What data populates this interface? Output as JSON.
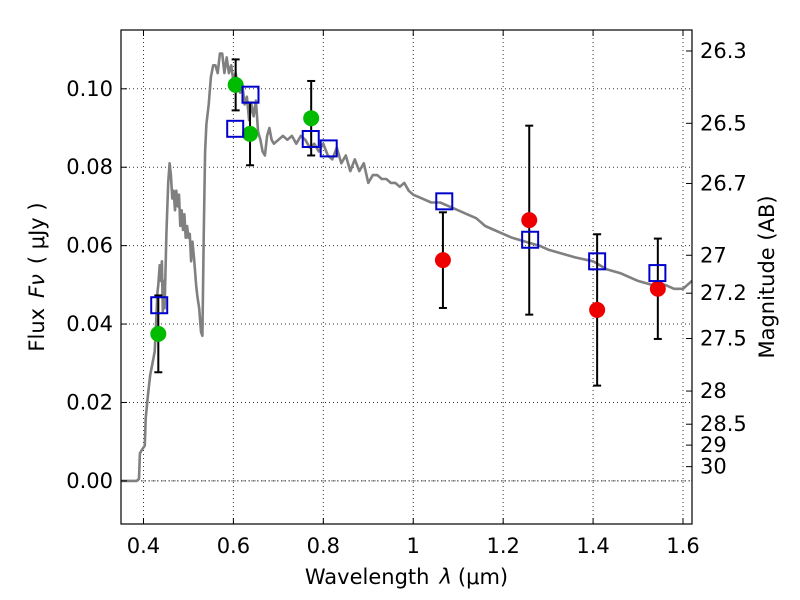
{
  "chart_data": {
    "type": "scatter",
    "title": "",
    "xlabel": "Wavelength",
    "xlabel_symbol": "λ",
    "xlabel_unit": "(μm)",
    "ylabel": "Flux",
    "ylabel_symbol": "Fν",
    "ylabel_unit": "( μJy )",
    "ylabel_right": "Magnitude (AB)",
    "xlim": [
      0.35,
      1.62
    ],
    "ylim": [
      -0.011,
      0.115
    ],
    "x_ticks": [
      0.4,
      0.6,
      0.8,
      1.0,
      1.2,
      1.4,
      1.6
    ],
    "x_tick_labels": [
      "0.4",
      "0.6",
      "0.8",
      "1",
      "1.2",
      "1.4",
      "1.6"
    ],
    "y_ticks": [
      0.0,
      0.02,
      0.04,
      0.06,
      0.08,
      0.1
    ],
    "y_tick_labels": [
      "0.00",
      "0.02",
      "0.04",
      "0.06",
      "0.08",
      "0.10"
    ],
    "mag_ticks": [
      26.3,
      26.5,
      26.7,
      27,
      27.2,
      27.5,
      28,
      28.5,
      29,
      30
    ],
    "mag_tick_labels": [
      "26.3",
      "26.5",
      "26.7",
      "27",
      "27.2",
      "27.5",
      "28",
      "28.5",
      "29",
      "30"
    ],
    "grid": true,
    "colors": {
      "model": "#808080",
      "green_points": "#00bb00",
      "red_points": "#ee0000",
      "model_boxes": "#0000cc",
      "errorbars": "#000000"
    },
    "sed_model": {
      "name": "",
      "points": [
        [
          0.35,
          0.0
        ],
        [
          0.385,
          0.0
        ],
        [
          0.39,
          0.0005
        ],
        [
          0.392,
          0.007
        ],
        [
          0.397,
          0.008
        ],
        [
          0.403,
          0.009
        ],
        [
          0.405,
          0.016
        ],
        [
          0.41,
          0.022
        ],
        [
          0.415,
          0.027
        ],
        [
          0.42,
          0.03
        ],
        [
          0.425,
          0.033
        ],
        [
          0.428,
          0.04
        ],
        [
          0.431,
          0.048
        ],
        [
          0.433,
          0.05
        ],
        [
          0.436,
          0.055
        ],
        [
          0.438,
          0.051
        ],
        [
          0.441,
          0.056
        ],
        [
          0.443,
          0.043
        ],
        [
          0.445,
          0.051
        ],
        [
          0.447,
          0.044
        ],
        [
          0.451,
          0.063
        ],
        [
          0.455,
          0.076
        ],
        [
          0.458,
          0.081
        ],
        [
          0.461,
          0.078
        ],
        [
          0.464,
          0.072
        ],
        [
          0.467,
          0.074
        ],
        [
          0.47,
          0.069
        ],
        [
          0.473,
          0.074
        ],
        [
          0.476,
          0.07
        ],
        [
          0.479,
          0.073
        ],
        [
          0.482,
          0.065
        ],
        [
          0.485,
          0.069
        ],
        [
          0.488,
          0.064
        ],
        [
          0.491,
          0.068
        ],
        [
          0.494,
          0.062
        ],
        [
          0.497,
          0.065
        ],
        [
          0.5,
          0.062
        ],
        [
          0.503,
          0.063
        ],
        [
          0.506,
          0.056
        ],
        [
          0.509,
          0.061
        ],
        [
          0.513,
          0.056
        ],
        [
          0.517,
          0.05
        ],
        [
          0.52,
          0.047
        ],
        [
          0.524,
          0.044
        ],
        [
          0.528,
          0.038
        ],
        [
          0.531,
          0.037
        ],
        [
          0.534,
          0.062
        ],
        [
          0.537,
          0.084
        ],
        [
          0.54,
          0.091
        ],
        [
          0.545,
          0.096
        ],
        [
          0.55,
          0.103
        ],
        [
          0.555,
          0.106
        ],
        [
          0.56,
          0.106
        ],
        [
          0.565,
          0.104
        ],
        [
          0.57,
          0.109
        ],
        [
          0.575,
          0.109
        ],
        [
          0.58,
          0.104
        ],
        [
          0.585,
          0.108
        ],
        [
          0.59,
          0.104
        ],
        [
          0.595,
          0.106
        ],
        [
          0.6,
          0.102
        ],
        [
          0.605,
          0.104
        ],
        [
          0.61,
          0.101
        ],
        [
          0.615,
          0.099
        ],
        [
          0.62,
          0.101
        ],
        [
          0.625,
          0.096
        ],
        [
          0.63,
          0.098
        ],
        [
          0.635,
          0.092
        ],
        [
          0.64,
          0.096
        ],
        [
          0.645,
          0.093
        ],
        [
          0.65,
          0.097
        ],
        [
          0.655,
          0.089
        ],
        [
          0.66,
          0.087
        ],
        [
          0.665,
          0.084
        ],
        [
          0.67,
          0.083
        ],
        [
          0.675,
          0.088
        ],
        [
          0.68,
          0.09
        ],
        [
          0.685,
          0.087
        ],
        [
          0.69,
          0.086
        ],
        [
          0.7,
          0.087
        ],
        [
          0.71,
          0.088
        ],
        [
          0.72,
          0.087
        ],
        [
          0.73,
          0.088
        ],
        [
          0.74,
          0.086
        ],
        [
          0.75,
          0.088
        ],
        [
          0.76,
          0.087
        ],
        [
          0.77,
          0.085
        ],
        [
          0.78,
          0.086
        ],
        [
          0.79,
          0.084
        ],
        [
          0.8,
          0.086
        ],
        [
          0.81,
          0.083
        ],
        [
          0.82,
          0.082
        ],
        [
          0.83,
          0.085
        ],
        [
          0.84,
          0.081
        ],
        [
          0.85,
          0.083
        ],
        [
          0.86,
          0.079
        ],
        [
          0.87,
          0.082
        ],
        [
          0.88,
          0.079
        ],
        [
          0.89,
          0.081
        ],
        [
          0.9,
          0.076
        ],
        [
          0.91,
          0.078
        ],
        [
          0.92,
          0.078
        ],
        [
          0.93,
          0.077
        ],
        [
          0.94,
          0.077
        ],
        [
          0.95,
          0.076
        ],
        [
          0.96,
          0.076
        ],
        [
          0.97,
          0.075
        ],
        [
          0.98,
          0.076
        ],
        [
          0.99,
          0.074
        ],
        [
          1.0,
          0.073
        ],
        [
          1.02,
          0.072
        ],
        [
          1.04,
          0.071
        ],
        [
          1.06,
          0.071
        ],
        [
          1.08,
          0.07
        ],
        [
          1.1,
          0.069
        ],
        [
          1.12,
          0.068
        ],
        [
          1.14,
          0.067
        ],
        [
          1.16,
          0.065
        ],
        [
          1.18,
          0.064
        ],
        [
          1.2,
          0.063
        ],
        [
          1.22,
          0.062
        ],
        [
          1.25,
          0.061
        ],
        [
          1.28,
          0.06
        ],
        [
          1.3,
          0.059
        ],
        [
          1.33,
          0.058
        ],
        [
          1.36,
          0.057
        ],
        [
          1.4,
          0.056
        ],
        [
          1.43,
          0.054
        ],
        [
          1.46,
          0.053
        ],
        [
          1.5,
          0.051
        ],
        [
          1.53,
          0.05
        ],
        [
          1.56,
          0.05
        ],
        [
          1.58,
          0.049
        ],
        [
          1.6,
          0.049
        ],
        [
          1.61,
          0.05
        ],
        [
          1.62,
          0.051
        ]
      ]
    },
    "green_points": {
      "name": "",
      "points": [
        {
          "x": 0.433,
          "y": 0.0375,
          "yerr": 0.0098
        },
        {
          "x": 0.605,
          "y": 0.101,
          "yerr": 0.0065
        },
        {
          "x": 0.637,
          "y": 0.0885,
          "yerr": 0.008
        },
        {
          "x": 0.773,
          "y": 0.0925,
          "yerr": 0.0095
        }
      ]
    },
    "red_points": {
      "name": "",
      "points": [
        {
          "x": 1.066,
          "y": 0.0563,
          "yerr": 0.0122
        },
        {
          "x": 1.258,
          "y": 0.0665,
          "yerr": 0.0241
        },
        {
          "x": 1.409,
          "y": 0.0436,
          "yerr": 0.0193
        },
        {
          "x": 1.544,
          "y": 0.049,
          "yerr": 0.0128
        }
      ]
    },
    "model_boxes": {
      "name": "",
      "points": [
        {
          "x": 0.435,
          "y": 0.0448
        },
        {
          "x": 0.604,
          "y": 0.0898
        },
        {
          "x": 0.638,
          "y": 0.0985
        },
        {
          "x": 0.772,
          "y": 0.0872
        },
        {
          "x": 0.812,
          "y": 0.0848
        },
        {
          "x": 1.069,
          "y": 0.0713
        },
        {
          "x": 1.26,
          "y": 0.0615
        },
        {
          "x": 1.409,
          "y": 0.056
        },
        {
          "x": 1.543,
          "y": 0.053
        }
      ]
    }
  }
}
